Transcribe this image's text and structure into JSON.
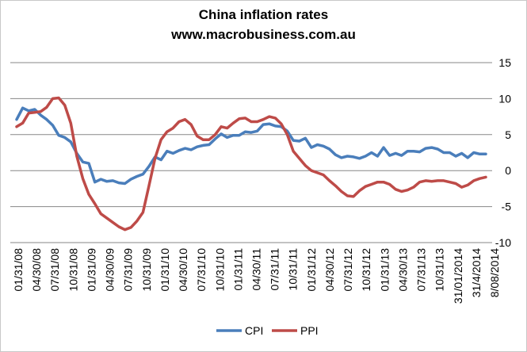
{
  "chart_data": {
    "type": "line",
    "title": "China inflation rates",
    "subtitle": "www.macrobusiness.com.au",
    "xlabel": "",
    "ylabel": "",
    "ylim": [
      -10,
      15
    ],
    "yticks": [
      -10,
      -5,
      0,
      5,
      10,
      15
    ],
    "y_axis_side": "right",
    "grid": "horizontal",
    "legend_position": "bottom",
    "x_tick_labels": [
      "01/31/08",
      "04/30/08",
      "07/31/08",
      "10/31/08",
      "01/31/09",
      "04/30/09",
      "07/31/09",
      "10/31/09",
      "01/31/10",
      "04/30/10",
      "07/31/10",
      "10/31/10",
      "01/31/11",
      "04/30/11",
      "07/31/11",
      "10/31/11",
      "01/31/12",
      "04/30/12",
      "07/31/12",
      "10/31/12",
      "01/31/13",
      "04/30/13",
      "07/31/13",
      "10/31/13",
      "31/01/2014",
      "31/4/2014",
      "8/08/2014"
    ],
    "series": [
      {
        "name": "CPI",
        "color": "#4a7ebb",
        "values": [
          7.1,
          8.7,
          8.3,
          8.5,
          7.7,
          7.1,
          6.3,
          4.9,
          4.6,
          4.0,
          2.4,
          1.2,
          1.0,
          -1.6,
          -1.2,
          -1.5,
          -1.4,
          -1.7,
          -1.8,
          -1.2,
          -0.8,
          -0.5,
          0.6,
          1.9,
          1.5,
          2.7,
          2.4,
          2.8,
          3.1,
          2.9,
          3.3,
          3.5,
          3.6,
          4.4,
          5.1,
          4.6,
          4.9,
          4.9,
          5.4,
          5.3,
          5.5,
          6.4,
          6.5,
          6.2,
          6.1,
          5.5,
          4.2,
          4.1,
          4.5,
          3.2,
          3.6,
          3.4,
          3.0,
          2.2,
          1.8,
          2.0,
          1.9,
          1.7,
          2.0,
          2.5,
          2.0,
          3.2,
          2.1,
          2.4,
          2.1,
          2.7,
          2.7,
          2.6,
          3.1,
          3.2,
          3.0,
          2.5,
          2.5,
          2.0,
          2.4,
          1.8,
          2.5,
          2.3,
          2.3
        ],
        "data_labels": []
      },
      {
        "name": "PPI",
        "color": "#be4b48",
        "values": [
          6.1,
          6.6,
          8.0,
          8.1,
          8.2,
          8.8,
          10.0,
          10.1,
          9.1,
          6.6,
          2.0,
          -1.1,
          -3.3,
          -4.6,
          -6.0,
          -6.6,
          -7.2,
          -7.8,
          -8.2,
          -7.9,
          -7.0,
          -5.8,
          -2.1,
          1.7,
          4.3,
          5.4,
          5.9,
          6.8,
          7.1,
          6.4,
          4.8,
          4.3,
          4.3,
          5.0,
          6.1,
          5.9,
          6.6,
          7.2,
          7.3,
          6.8,
          6.8,
          7.1,
          7.5,
          7.3,
          6.5,
          5.0,
          2.7,
          1.7,
          0.7,
          0.0,
          -0.3,
          -0.6,
          -1.4,
          -2.1,
          -2.9,
          -3.5,
          -3.6,
          -2.8,
          -2.2,
          -1.9,
          -1.6,
          -1.6,
          -1.9,
          -2.6,
          -2.9,
          -2.7,
          -2.3,
          -1.6,
          -1.4,
          -1.5,
          -1.4,
          -1.4,
          -1.6,
          -1.8,
          -2.3,
          -2.0,
          -1.4,
          -1.1,
          -0.9
        ],
        "data_labels": []
      }
    ]
  }
}
